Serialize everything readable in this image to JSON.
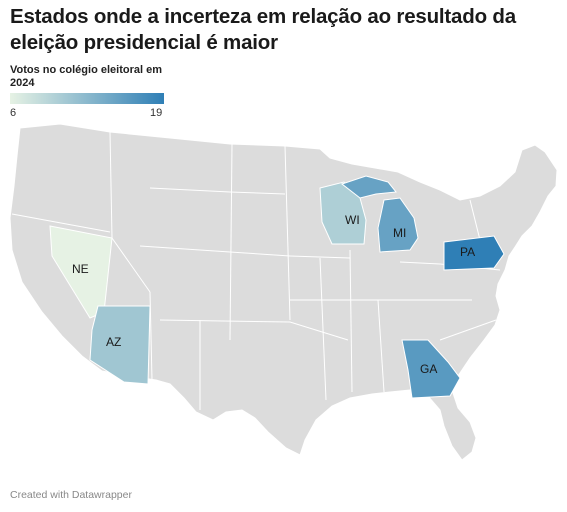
{
  "title": "Estados onde a incerteza em relação ao resultado da eleição presidencial é maior",
  "legend": {
    "title": "Votos no colégio eleitoral em 2024",
    "min": "6",
    "max": "19",
    "min_value": 6,
    "max_value": 19,
    "color_low": "#e6f2e4",
    "color_high": "#2f7fb6"
  },
  "chart_data": {
    "type": "choropleth",
    "base_color": "#dcdcdc",
    "border_color": "#ffffff",
    "states": [
      {
        "label": "NE",
        "value": 6
      },
      {
        "label": "AZ",
        "value": 11
      },
      {
        "label": "WI",
        "value": 10
      },
      {
        "label": "MI",
        "value": 15
      },
      {
        "label": "PA",
        "value": 19
      },
      {
        "label": "GA",
        "value": 16
      }
    ]
  },
  "footer": "Created with Datawrapper"
}
